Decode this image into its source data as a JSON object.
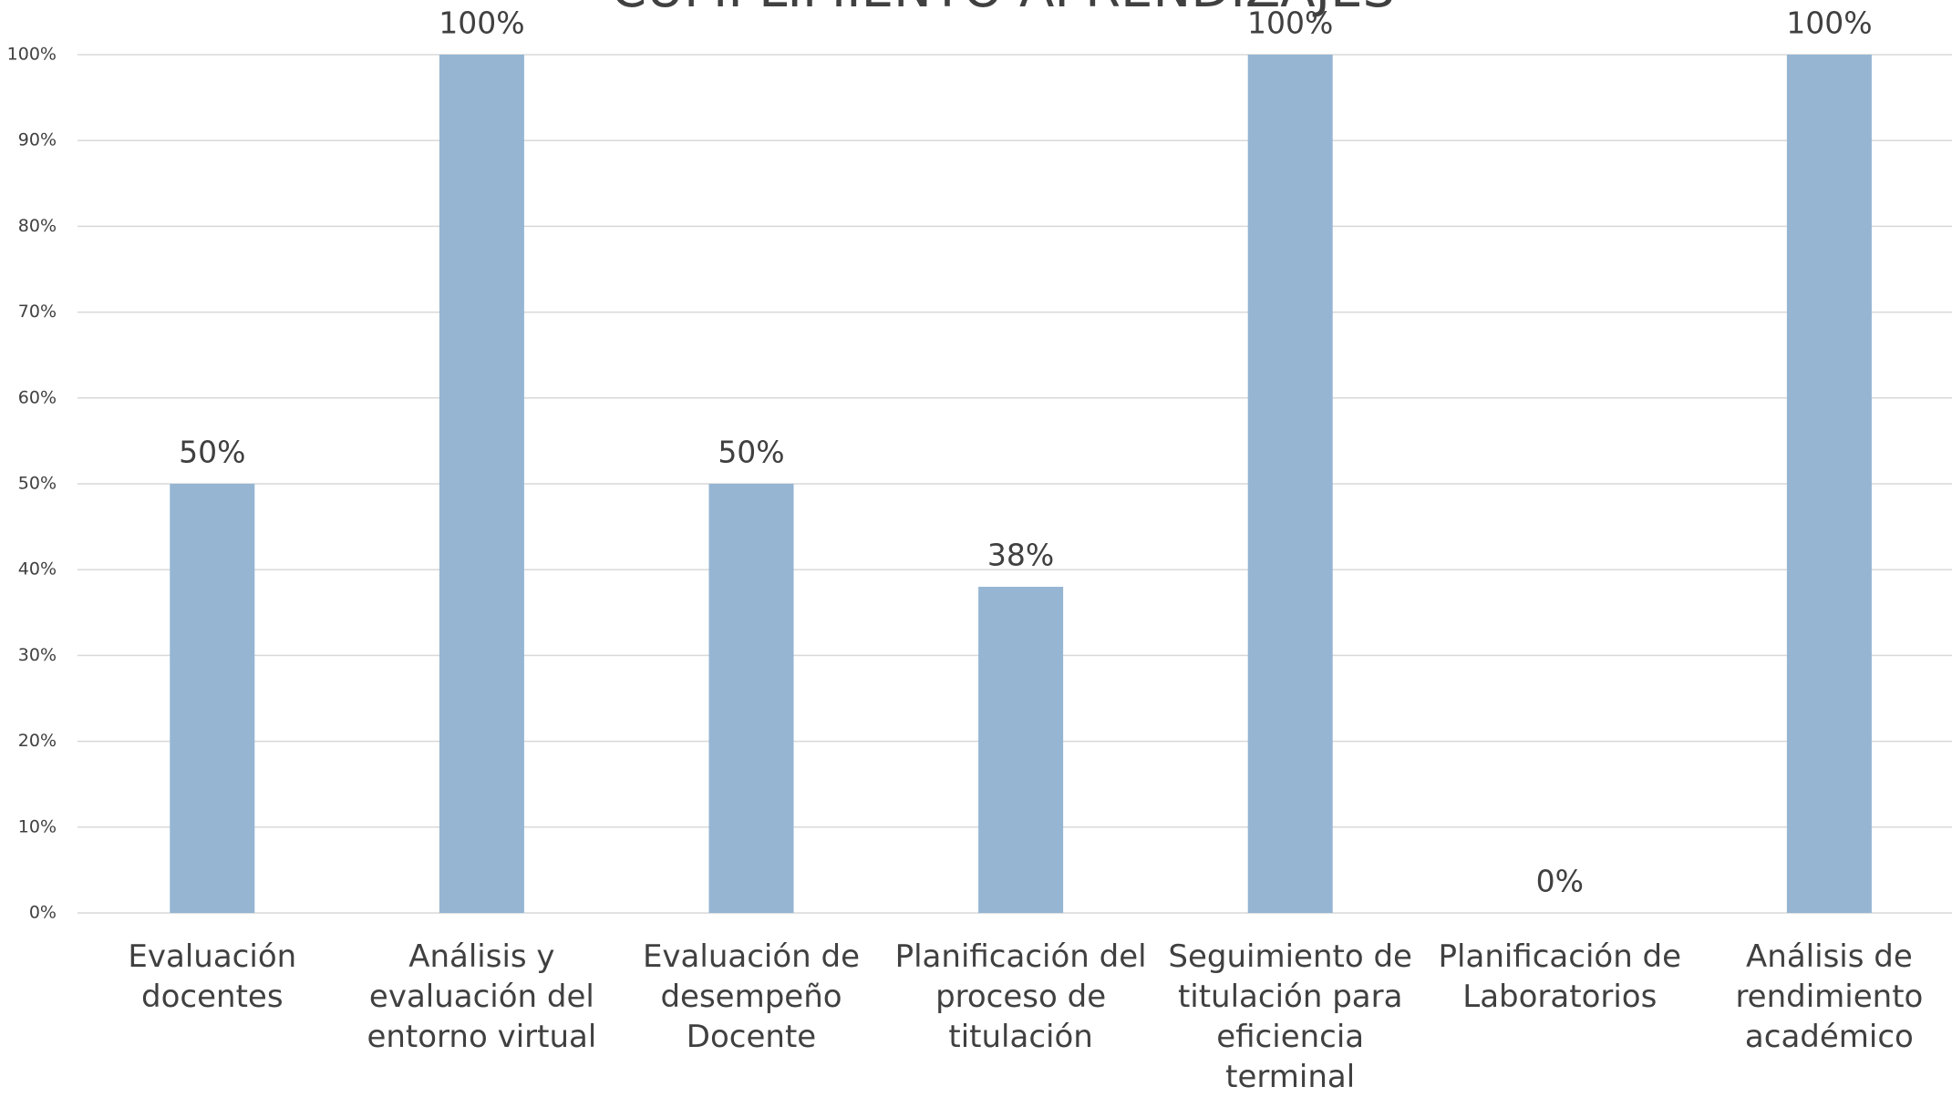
{
  "chart_data": {
    "type": "bar",
    "title": "CUMPLIMIENTO APRENDIZAJES",
    "categories": [
      "Evaluación docentes",
      "Análisis y evaluación del entorno virtual",
      "Evaluación de desempeño Docente",
      "Planificación del proceso de titulación",
      "Seguimiento de titulación para eficiencia terminal",
      "Planificación de Laboratorios",
      "Análisis de rendimiento académico"
    ],
    "values": [
      50,
      100,
      50,
      38,
      100,
      0,
      100
    ],
    "value_labels": [
      "50%",
      "100%",
      "50%",
      "38%",
      "100%",
      "0%",
      "100%"
    ],
    "color": "#95b5d3",
    "ylim": [
      0,
      100
    ],
    "yticks": [
      {
        "value": 0,
        "label": "0%"
      },
      {
        "value": 10,
        "label": "10%"
      },
      {
        "value": 20,
        "label": "20%"
      },
      {
        "value": 30,
        "label": "30%"
      },
      {
        "value": 40,
        "label": "40%"
      },
      {
        "value": 50,
        "label": "50%"
      },
      {
        "value": 60,
        "label": "60%"
      },
      {
        "value": 70,
        "label": "70%"
      },
      {
        "value": 80,
        "label": "80%"
      },
      {
        "value": 90,
        "label": "90%"
      },
      {
        "value": 100,
        "label": "100%"
      }
    ],
    "grid": true
  }
}
